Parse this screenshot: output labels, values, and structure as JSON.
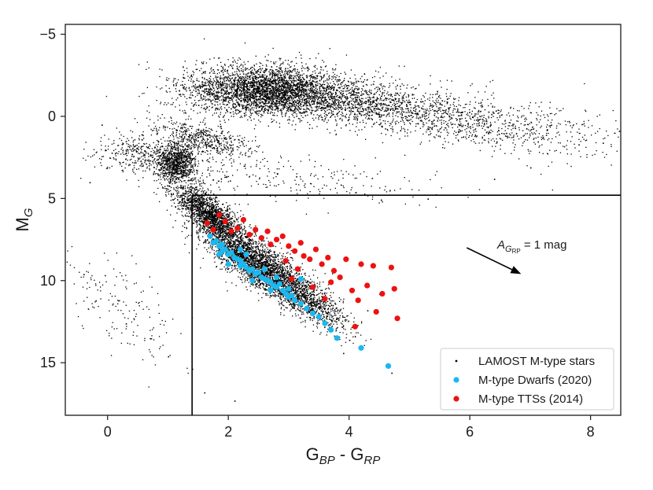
{
  "chart_data": {
    "type": "scatter",
    "xlabel": {
      "main": "G",
      "sub1": "BP",
      "mid": " - G",
      "sub2": "RP"
    },
    "ylabel": {
      "main": "M",
      "sub": "G"
    },
    "xlim": [
      -0.7,
      8.5
    ],
    "ylim": [
      18.2,
      -5.6
    ],
    "y_inverted": true,
    "xticks": [
      0,
      2,
      4,
      6,
      8
    ],
    "yticks": [
      -5,
      0,
      5,
      10,
      15
    ],
    "ytick_labels": [
      "−5",
      "0",
      "5",
      "10",
      "15"
    ],
    "grid": false,
    "legend_position": "lower-right",
    "series": [
      {
        "name": "LAMOST M-type stars",
        "color": "#000000",
        "marker": "point",
        "points": [
          [
            1.0,
            2.6
          ],
          [
            1.2,
            3.4
          ],
          [
            1.4,
            4.3
          ],
          [
            1.6,
            5.3
          ],
          [
            1.8,
            6.3
          ],
          [
            2.0,
            7.3
          ],
          [
            2.2,
            8.2
          ],
          [
            2.5,
            9.3
          ],
          [
            2.8,
            10.2
          ],
          [
            3.1,
            11.0
          ],
          [
            3.4,
            11.9
          ],
          [
            3.7,
            12.8
          ],
          [
            4.0,
            13.6
          ],
          [
            2.4,
            -2.0
          ],
          [
            3.0,
            -1.7
          ],
          [
            3.6,
            -1.2
          ],
          [
            4.2,
            -0.8
          ],
          [
            4.8,
            -0.3
          ],
          [
            5.4,
            0.2
          ],
          [
            6.0,
            0.6
          ],
          [
            6.6,
            1.0
          ],
          [
            7.2,
            1.3
          ],
          [
            7.8,
            1.7
          ],
          [
            8.2,
            1.6
          ],
          [
            0.3,
            1.5
          ],
          [
            -0.1,
            0.5
          ],
          [
            0.8,
            0.8
          ],
          [
            -0.3,
            4.0
          ],
          [
            -0.4,
            9.6
          ],
          [
            -0.2,
            11.2
          ],
          [
            0.3,
            12.6
          ],
          [
            0.7,
            13.5
          ],
          [
            1.0,
            14.6
          ],
          [
            4.5,
            10.8
          ],
          [
            4.3,
            11.8
          ],
          [
            3.9,
            14.4
          ],
          [
            4.7,
            15.6
          ],
          [
            2.1,
            17.3
          ],
          [
            1.6,
            16.8
          ],
          [
            5.3,
            5.0
          ],
          [
            6.4,
            3.8
          ],
          [
            7.0,
            3.1
          ],
          [
            1.5,
            -0.7
          ]
        ]
      },
      {
        "name": "M-type Dwarfs (2020)",
        "color": "#1ab8ef",
        "marker": "circle",
        "points": [
          [
            1.7,
            7.3
          ],
          [
            1.75,
            7.7
          ],
          [
            1.8,
            7.6
          ],
          [
            1.85,
            7.9
          ],
          [
            1.9,
            7.8
          ],
          [
            1.9,
            8.2
          ],
          [
            1.95,
            8.1
          ],
          [
            2.0,
            8.4
          ],
          [
            2.05,
            8.3
          ],
          [
            2.1,
            8.6
          ],
          [
            2.15,
            8.7
          ],
          [
            2.2,
            8.8
          ],
          [
            2.2,
            9.1
          ],
          [
            2.25,
            9.0
          ],
          [
            2.3,
            9.2
          ],
          [
            2.35,
            9.4
          ],
          [
            2.4,
            9.3
          ],
          [
            2.45,
            9.6
          ],
          [
            2.5,
            9.5
          ],
          [
            2.55,
            9.8
          ],
          [
            2.6,
            9.9
          ],
          [
            2.65,
            10.0
          ],
          [
            2.7,
            10.1
          ],
          [
            2.75,
            10.3
          ],
          [
            2.8,
            10.4
          ],
          [
            2.85,
            10.2
          ],
          [
            2.9,
            10.6
          ],
          [
            2.95,
            10.8
          ],
          [
            3.0,
            11.0
          ],
          [
            3.05,
            10.9
          ],
          [
            3.1,
            11.2
          ],
          [
            3.2,
            11.4
          ],
          [
            3.3,
            11.7
          ],
          [
            3.4,
            12.0
          ],
          [
            3.5,
            12.2
          ],
          [
            3.6,
            12.6
          ],
          [
            3.7,
            13.0
          ],
          [
            3.8,
            13.5
          ],
          [
            4.2,
            14.1
          ],
          [
            4.65,
            15.2
          ],
          [
            2.2,
            8.1
          ],
          [
            2.3,
            8.4
          ],
          [
            2.6,
            9.3
          ],
          [
            2.8,
            9.8
          ],
          [
            3.0,
            10.5
          ],
          [
            3.2,
            9.9
          ],
          [
            2.0,
            9.0
          ],
          [
            1.85,
            8.4
          ],
          [
            2.4,
            10.0
          ],
          [
            2.7,
            10.6
          ]
        ]
      },
      {
        "name": "M-type TTSs (2014)",
        "color": "#ee1111",
        "marker": "circle",
        "points": [
          [
            1.65,
            6.5
          ],
          [
            1.75,
            6.9
          ],
          [
            1.85,
            6.0
          ],
          [
            1.95,
            6.4
          ],
          [
            2.05,
            7.0
          ],
          [
            2.15,
            6.8
          ],
          [
            2.25,
            6.3
          ],
          [
            2.35,
            7.2
          ],
          [
            2.45,
            6.9
          ],
          [
            2.55,
            7.4
          ],
          [
            2.65,
            7.0
          ],
          [
            2.7,
            7.8
          ],
          [
            2.8,
            7.5
          ],
          [
            2.9,
            7.3
          ],
          [
            3.0,
            7.9
          ],
          [
            3.1,
            8.2
          ],
          [
            3.2,
            7.7
          ],
          [
            3.25,
            8.5
          ],
          [
            3.35,
            8.7
          ],
          [
            3.45,
            8.1
          ],
          [
            3.55,
            9.0
          ],
          [
            3.65,
            8.6
          ],
          [
            3.75,
            9.4
          ],
          [
            3.85,
            9.8
          ],
          [
            3.95,
            8.7
          ],
          [
            4.05,
            10.6
          ],
          [
            4.15,
            11.2
          ],
          [
            4.3,
            10.3
          ],
          [
            4.4,
            9.1
          ],
          [
            4.45,
            11.9
          ],
          [
            4.55,
            10.8
          ],
          [
            4.7,
            9.2
          ],
          [
            4.75,
            10.5
          ],
          [
            4.8,
            12.3
          ],
          [
            4.1,
            12.8
          ],
          [
            3.6,
            11.1
          ],
          [
            3.4,
            10.4
          ],
          [
            3.15,
            9.3
          ],
          [
            2.95,
            8.8
          ],
          [
            4.2,
            9.0
          ],
          [
            3.7,
            10.1
          ],
          [
            3.05,
            9.9
          ]
        ]
      }
    ],
    "annotation": {
      "label_main": "A",
      "label_sub": "G",
      "label_subsub": "RP",
      "label_rest": " = 1 mag",
      "arrow_from": [
        5.95,
        8.0
      ],
      "arrow_to": [
        6.85,
        9.6
      ]
    },
    "selection_box": {
      "x_min": 1.4,
      "mg_min": 4.8
    }
  }
}
